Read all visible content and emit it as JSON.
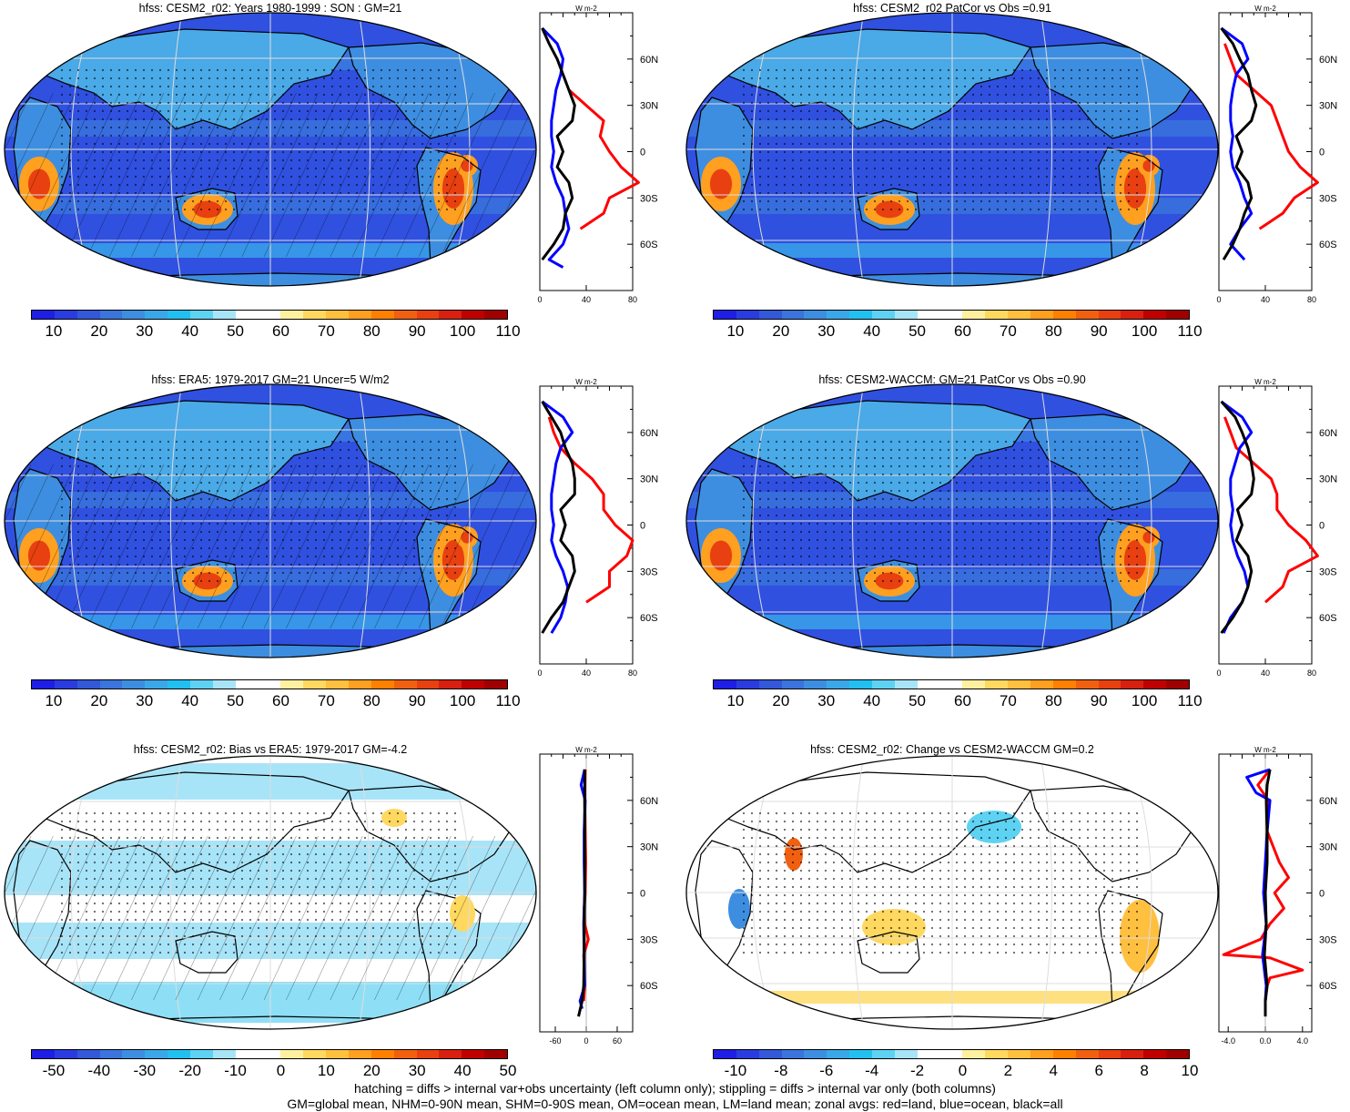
{
  "chart_data": [
    {
      "type": "heatmap",
      "title": "hfss: CESM2_r02: Years 1980-1999 : SON : GM=21",
      "map_projection": "Robinson, Pacific-centered",
      "scale": "full",
      "colorbar_ticks": [
        "10",
        "20",
        "30",
        "40",
        "50",
        "60",
        "70",
        "80",
        "90",
        "100",
        "110"
      ],
      "overlays": [
        "hatching",
        "stippling"
      ],
      "zonal_profile": {
        "axis_unit": "W m-2",
        "x_ticks": [
          "0",
          "40",
          "80"
        ],
        "xlim": [
          0,
          80
        ],
        "lat_ticks": [
          "60N",
          "30N",
          "0",
          "30S",
          "60S"
        ],
        "series": [
          {
            "color": "#ff0000",
            "lat": [
              40,
              30,
              20,
              10,
              0,
              -10,
              -20,
              -30,
              -40,
              -50
            ],
            "values": [
              25,
              40,
              55,
              52,
              60,
              70,
              85,
              60,
              55,
              35
            ]
          },
          {
            "color": "#0000ff",
            "lat": [
              80,
              70,
              60,
              50,
              40,
              30,
              20,
              10,
              0,
              -10,
              -20,
              -30,
              -40,
              -50,
              -60,
              -70,
              -75
            ],
            "values": [
              2,
              15,
              20,
              18,
              14,
              12,
              10,
              10,
              12,
              10,
              14,
              20,
              22,
              25,
              20,
              8,
              20
            ]
          },
          {
            "color": "#000000",
            "lat": [
              80,
              70,
              60,
              50,
              40,
              30,
              20,
              10,
              0,
              -10,
              -20,
              -30,
              -40,
              -50,
              -60,
              -70
            ],
            "values": [
              2,
              8,
              15,
              20,
              25,
              30,
              28,
              15,
              20,
              15,
              25,
              28,
              22,
              20,
              12,
              2
            ]
          }
        ]
      }
    },
    {
      "type": "heatmap",
      "title": "hfss: CESM2_r02 PatCor vs Obs =0.91",
      "map_projection": "Robinson, Pacific-centered",
      "scale": "full",
      "colorbar_ticks": [
        "10",
        "20",
        "30",
        "40",
        "50",
        "60",
        "70",
        "80",
        "90",
        "100",
        "110"
      ],
      "overlays": [
        "stippling"
      ],
      "zonal_profile": {
        "axis_unit": "W m-2",
        "x_ticks": [
          "0",
          "40",
          "80"
        ],
        "xlim": [
          0,
          80
        ],
        "lat_ticks": [
          "60N",
          "30N",
          "0",
          "30S",
          "60S"
        ],
        "series": [
          {
            "color": "#ff0000",
            "lat": [
              70,
              60,
              50,
              40,
              30,
              20,
              10,
              0,
              -10,
              -20,
              -30,
              -40,
              -50
            ],
            "values": [
              5,
              10,
              15,
              30,
              45,
              50,
              55,
              60,
              70,
              85,
              65,
              55,
              35
            ]
          },
          {
            "color": "#0000ff",
            "lat": [
              80,
              70,
              60,
              50,
              40,
              30,
              20,
              10,
              0,
              -10,
              -20,
              -30,
              -40,
              -50,
              -60,
              -70
            ],
            "values": [
              2,
              20,
              25,
              15,
              12,
              10,
              10,
              12,
              10,
              12,
              18,
              22,
              28,
              18,
              10,
              22
            ]
          },
          {
            "color": "#000000",
            "lat": [
              80,
              70,
              60,
              50,
              40,
              30,
              20,
              10,
              0,
              -10,
              -20,
              -30,
              -40,
              -50,
              -60,
              -70
            ],
            "values": [
              2,
              12,
              18,
              25,
              28,
              32,
              28,
              15,
              20,
              15,
              25,
              28,
              22,
              18,
              12,
              4
            ]
          }
        ]
      }
    },
    {
      "type": "heatmap",
      "title": "hfss: ERA5: 1979-2017 GM=21 Uncer=5 W/m2",
      "map_projection": "Robinson, Pacific-centered",
      "scale": "full",
      "colorbar_ticks": [
        "10",
        "20",
        "30",
        "40",
        "50",
        "60",
        "70",
        "80",
        "90",
        "100",
        "110"
      ],
      "overlays": [
        "hatching",
        "stippling"
      ],
      "zonal_profile": {
        "axis_unit": "W m-2",
        "x_ticks": [
          "0",
          "40",
          "80"
        ],
        "xlim": [
          0,
          80
        ],
        "lat_ticks": [
          "60N",
          "30N",
          "0",
          "30S",
          "60S"
        ],
        "series": [
          {
            "color": "#ff0000",
            "lat": [
              70,
              60,
              50,
              40,
              30,
              20,
              10,
              0,
              -10,
              -20,
              -30,
              -40,
              -50
            ],
            "values": [
              8,
              12,
              18,
              30,
              45,
              55,
              55,
              65,
              80,
              75,
              60,
              60,
              40
            ]
          },
          {
            "color": "#0000ff",
            "lat": [
              80,
              70,
              60,
              50,
              40,
              30,
              20,
              10,
              0,
              -10,
              -20,
              -30,
              -40,
              -50,
              -60,
              -70
            ],
            "values": [
              2,
              20,
              28,
              18,
              14,
              12,
              10,
              10,
              12,
              10,
              14,
              20,
              24,
              22,
              18,
              10
            ]
          },
          {
            "color": "#000000",
            "lat": [
              80,
              70,
              60,
              50,
              40,
              30,
              20,
              10,
              0,
              -10,
              -20,
              -30,
              -40,
              -50,
              -60,
              -70
            ],
            "values": [
              2,
              10,
              18,
              22,
              28,
              30,
              30,
              18,
              22,
              18,
              28,
              30,
              25,
              20,
              10,
              2
            ]
          }
        ]
      }
    },
    {
      "type": "heatmap",
      "title": "hfss: CESM2-WACCM: GM=21 PatCor vs Obs =0.90",
      "map_projection": "Robinson, Pacific-centered",
      "scale": "full",
      "colorbar_ticks": [
        "10",
        "20",
        "30",
        "40",
        "50",
        "60",
        "70",
        "80",
        "90",
        "100",
        "110"
      ],
      "overlays": [
        "stippling"
      ],
      "zonal_profile": {
        "axis_unit": "W m-2",
        "x_ticks": [
          "0",
          "40",
          "80"
        ],
        "xlim": [
          0,
          80
        ],
        "lat_ticks": [
          "60N",
          "30N",
          "0",
          "30S",
          "60S"
        ],
        "series": [
          {
            "color": "#ff0000",
            "lat": [
              70,
              60,
              50,
              40,
              30,
              20,
              10,
              0,
              -10,
              -20,
              -30,
              -40,
              -50
            ],
            "values": [
              5,
              10,
              15,
              30,
              45,
              50,
              50,
              60,
              75,
              85,
              60,
              55,
              40
            ]
          },
          {
            "color": "#0000ff",
            "lat": [
              80,
              70,
              60,
              50,
              40,
              30,
              20,
              10,
              0,
              -10,
              -20,
              -30,
              -40,
              -50,
              -60,
              -70
            ],
            "values": [
              2,
              20,
              28,
              18,
              14,
              10,
              10,
              12,
              10,
              12,
              16,
              22,
              25,
              20,
              10,
              4
            ]
          },
          {
            "color": "#000000",
            "lat": [
              80,
              70,
              60,
              50,
              40,
              30,
              20,
              10,
              0,
              -10,
              -20,
              -30,
              -40,
              -50,
              -60,
              -70
            ],
            "values": [
              2,
              14,
              20,
              25,
              28,
              30,
              28,
              16,
              20,
              15,
              25,
              28,
              25,
              20,
              12,
              2
            ]
          }
        ]
      }
    },
    {
      "type": "heatmap",
      "title": "hfss: CESM2_r02: Bias vs ERA5: 1979-2017  GM=-4.2",
      "map_projection": "Robinson, Pacific-centered",
      "scale": "bias",
      "colorbar_ticks": [
        "-50",
        "-40",
        "-30",
        "-20",
        "-10",
        "0",
        "10",
        "20",
        "30",
        "40",
        "50"
      ],
      "overlays": [
        "hatching",
        "stippling"
      ],
      "zonal_profile": {
        "axis_unit": "W m-2",
        "x_ticks": [
          "-60",
          "0",
          "60"
        ],
        "xlim": [
          -90,
          90
        ],
        "lat_ticks": [
          "60N",
          "30N",
          "0",
          "30S",
          "60S"
        ],
        "series": [
          {
            "color": "#ff0000",
            "lat": [
              80,
              60,
              40,
              20,
              0,
              -10,
              -20,
              -30,
              -40,
              -50,
              -60,
              -70
            ],
            "values": [
              -2,
              -3,
              -2,
              -1,
              -2,
              -4,
              -3,
              4,
              -5,
              -4,
              -3,
              -5
            ]
          },
          {
            "color": "#0000ff",
            "lat": [
              80,
              70,
              60,
              40,
              20,
              0,
              -20,
              -40,
              -60,
              -70,
              -75
            ],
            "values": [
              -3,
              -10,
              -2,
              -4,
              -4,
              -3,
              -5,
              -4,
              -3,
              -12,
              -8
            ]
          },
          {
            "color": "#000000",
            "lat": [
              80,
              60,
              40,
              20,
              0,
              -20,
              -40,
              -60,
              -70,
              -80
            ],
            "values": [
              -3,
              -3,
              -3,
              -3,
              -3,
              -4,
              -4,
              -5,
              -8,
              -15
            ]
          }
        ]
      }
    },
    {
      "type": "heatmap",
      "title": "hfss: CESM2_r02: Change vs CESM2-WACCM GM=0.2",
      "map_projection": "Robinson, Pacific-centered",
      "scale": "change",
      "colorbar_ticks": [
        "-10",
        "-8",
        "-6",
        "-4",
        "-2",
        "0",
        "2",
        "4",
        "6",
        "8",
        "10"
      ],
      "overlays": [
        "stippling"
      ],
      "zonal_profile": {
        "axis_unit": "W m-2",
        "x_ticks": [
          "-4.0",
          "0.0",
          "4.0"
        ],
        "xlim": [
          -5,
          5
        ],
        "lat_ticks": [
          "60N",
          "30N",
          "0",
          "30S",
          "60S"
        ],
        "series": [
          {
            "color": "#ff0000",
            "lat": [
              80,
              70,
              60,
              40,
              20,
              10,
              0,
              -10,
              -20,
              -30,
              -40,
              -42,
              -50,
              -55,
              -60,
              -70
            ],
            "values": [
              0.5,
              -0.8,
              0.3,
              0.2,
              1.5,
              2.5,
              1.0,
              2.0,
              0.5,
              -0.5,
              -4.5,
              0.5,
              4.0,
              0.5,
              0.2,
              0
            ]
          },
          {
            "color": "#0000ff",
            "lat": [
              80,
              75,
              65,
              60,
              40,
              20,
              0,
              -20,
              -40,
              -60,
              -70
            ],
            "values": [
              0.5,
              -2.0,
              -1.0,
              0.5,
              0.2,
              0,
              -0.2,
              0.1,
              -0.3,
              0.1,
              0
            ]
          },
          {
            "color": "#000000",
            "lat": [
              80,
              70,
              60,
              40,
              20,
              0,
              -20,
              -40,
              -60,
              -70,
              -80
            ],
            "values": [
              0.5,
              0.2,
              0.1,
              0.2,
              0.2,
              0,
              0.1,
              -0.1,
              0.2,
              0,
              0
            ]
          }
        ]
      }
    }
  ],
  "footer": {
    "line1": "hatching = diffs > internal var+obs uncertainty (left column only); stippling = diffs > internal var only (both columns)",
    "line2": "GM=global mean, NHM=0-90N mean, SHM=0-90S mean, OM=ocean mean, LM=land mean; zonal avgs: red=land, blue=ocean, black=all"
  },
  "colors": {
    "full": [
      "#1e1ee6",
      "#2a3ce0",
      "#3358d8",
      "#3a74dc",
      "#3d8ee0",
      "#3aa8e8",
      "#22c0f0",
      "#5ed2f2",
      "#a8e4f8",
      "#ffffff",
      "#ffffff",
      "#fff0a0",
      "#ffd860",
      "#ffc040",
      "#ffa020",
      "#ff8000",
      "#f06010",
      "#e84010",
      "#d82010",
      "#c00000",
      "#a00000"
    ],
    "bias": [
      "#1e1ee6",
      "#2a3ce0",
      "#3358d8",
      "#3a74dc",
      "#3d8ee0",
      "#3aa8e8",
      "#22c0f0",
      "#5ed2f2",
      "#a8e4f8",
      "#ffffff",
      "#ffffff",
      "#fff0a0",
      "#ffd860",
      "#ffc040",
      "#ffa020",
      "#ff8000",
      "#f06010",
      "#e84010",
      "#d82010",
      "#c00000",
      "#a00000"
    ],
    "change": [
      "#1e1ee6",
      "#2a3ce0",
      "#3358d8",
      "#3a74dc",
      "#3d8ee0",
      "#3aa8e8",
      "#22c0f0",
      "#5ed2f2",
      "#a8e4f8",
      "#ffffff",
      "#ffffff",
      "#fff0a0",
      "#ffd860",
      "#ffc040",
      "#ffa020",
      "#ff8000",
      "#f06010",
      "#e84010",
      "#d82010",
      "#c00000",
      "#a00000"
    ],
    "ocean_full": "#3050e0",
    "ocean_bias": "#ffffff",
    "ocean_change": "#ffffff"
  }
}
